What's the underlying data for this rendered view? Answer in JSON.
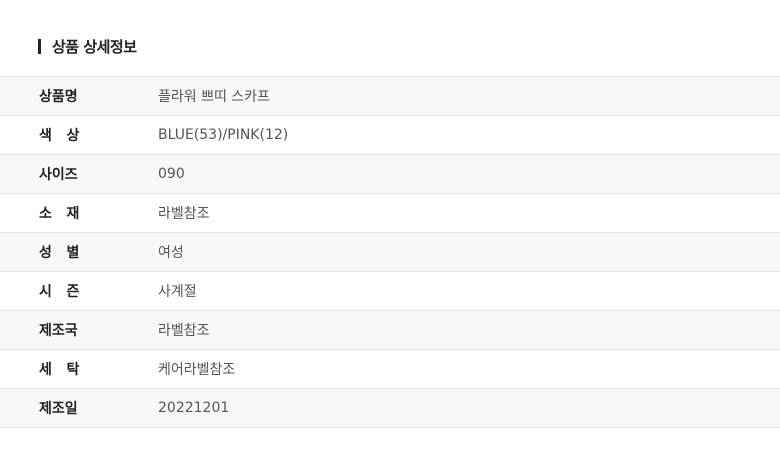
{
  "section_title": "상품 상세정보",
  "rows": [
    {
      "label": "상품명",
      "value": "플라워 쁘띠 스카프"
    },
    {
      "label": "색   상",
      "value": "BLUE(53)/PINK(12)"
    },
    {
      "label": "사이즈",
      "value": "090"
    },
    {
      "label": "소   재",
      "value": "라벨참조"
    },
    {
      "label": "성   별",
      "value": "여성"
    },
    {
      "label": "시   즌",
      "value": "사계절"
    },
    {
      "label": "제조국",
      "value": "라벨참조"
    },
    {
      "label": "세   탁",
      "value": "케어라벨참조"
    },
    {
      "label": "제조일",
      "value": "20221201"
    }
  ]
}
